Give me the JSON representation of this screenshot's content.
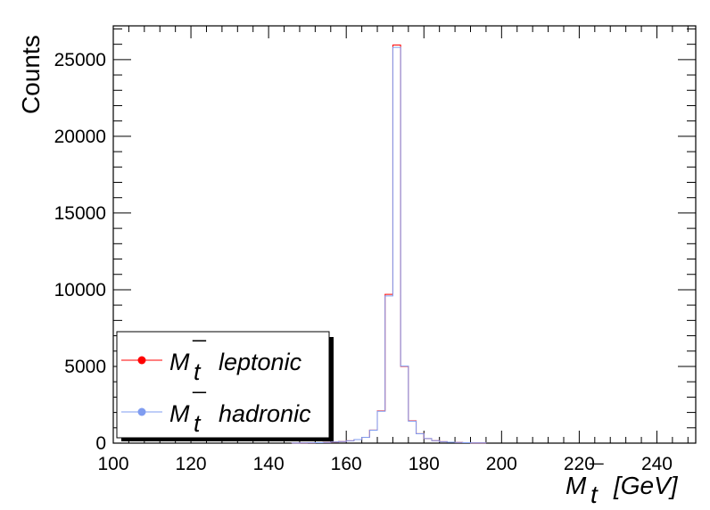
{
  "chart_data": {
    "type": "line",
    "title": "",
    "xlabel": {
      "symbol": "M",
      "sub": "t",
      "bar": "¯",
      "unit": "[GeV]"
    },
    "ylabel": "Counts",
    "xlim": [
      100,
      250
    ],
    "ylim": [
      0,
      27200
    ],
    "xticks": [
      "100",
      "120",
      "140",
      "160",
      "180",
      "200",
      "220",
      "240"
    ],
    "yticks": [
      "0",
      "5000",
      "10000",
      "15000",
      "20000",
      "25000"
    ],
    "bin_width": 2,
    "grid": false,
    "legend_position": "bottom-left",
    "series": [
      {
        "color": "#ff0000",
        "legend": {
          "symbol": "M",
          "sub": "t",
          "bar": "¯",
          "text": "leptonic"
        },
        "bins": [
          [
            146,
            10
          ],
          [
            148,
            15
          ],
          [
            150,
            22
          ],
          [
            152,
            30
          ],
          [
            154,
            45
          ],
          [
            156,
            70
          ],
          [
            158,
            100
          ],
          [
            160,
            150
          ],
          [
            162,
            230
          ],
          [
            164,
            380
          ],
          [
            166,
            850
          ],
          [
            168,
            2100
          ],
          [
            170,
            9700
          ],
          [
            172,
            25950
          ],
          [
            174,
            5000
          ],
          [
            176,
            1450
          ],
          [
            178,
            620
          ],
          [
            180,
            300
          ],
          [
            182,
            160
          ],
          [
            184,
            95
          ],
          [
            186,
            60
          ],
          [
            188,
            40
          ],
          [
            190,
            28
          ],
          [
            192,
            18
          ],
          [
            194,
            12
          ]
        ]
      },
      {
        "color": "#7f9cf0",
        "legend": {
          "symbol": "M",
          "sub": "t",
          "bar": "¯",
          "text": "hadronic"
        },
        "bins": [
          [
            146,
            10
          ],
          [
            148,
            15
          ],
          [
            150,
            22
          ],
          [
            152,
            30
          ],
          [
            154,
            45
          ],
          [
            156,
            70
          ],
          [
            158,
            100
          ],
          [
            160,
            150
          ],
          [
            162,
            230
          ],
          [
            164,
            380
          ],
          [
            166,
            840
          ],
          [
            168,
            2080
          ],
          [
            170,
            9600
          ],
          [
            172,
            25800
          ],
          [
            174,
            5020
          ],
          [
            176,
            1430
          ],
          [
            178,
            610
          ],
          [
            180,
            300
          ],
          [
            182,
            160
          ],
          [
            184,
            95
          ],
          [
            186,
            60
          ],
          [
            188,
            40
          ],
          [
            190,
            28
          ],
          [
            192,
            18
          ],
          [
            194,
            12
          ]
        ]
      }
    ]
  }
}
